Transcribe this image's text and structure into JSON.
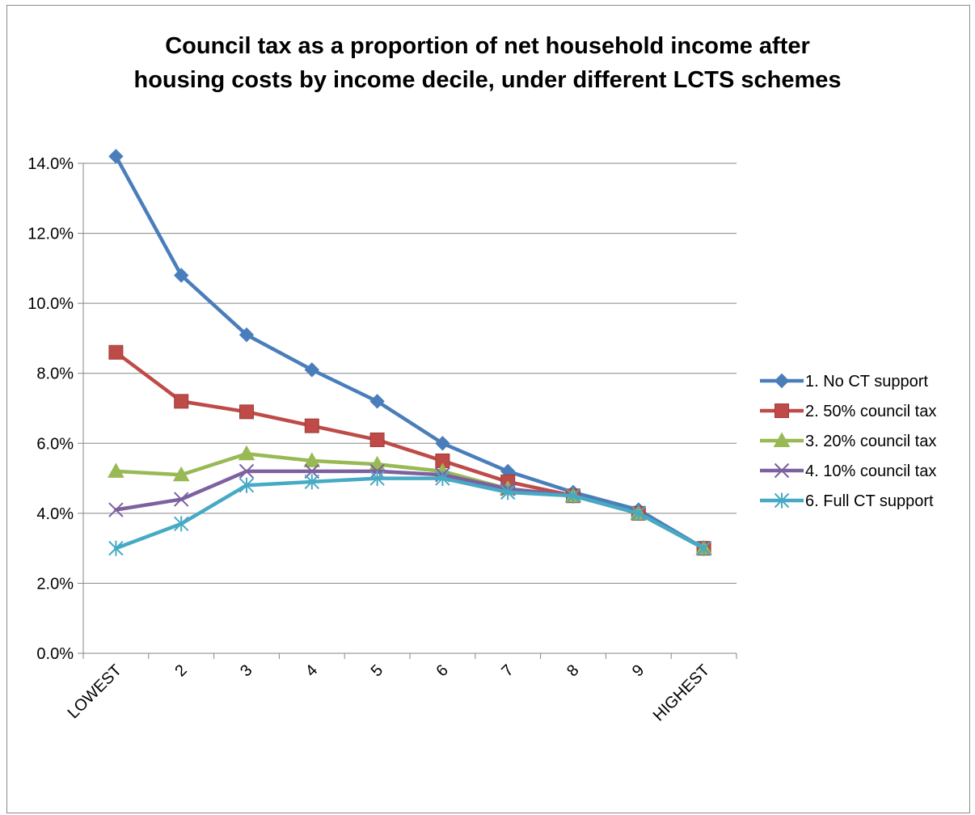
{
  "chart_data": {
    "type": "line",
    "title_lines": [
      "Council tax as a proportion of net household income after",
      "housing costs by income decile, under different LCTS schemes"
    ],
    "categories": [
      "LOWEST",
      "2",
      "3",
      "4",
      "5",
      "6",
      "7",
      "8",
      "9",
      "HIGHEST"
    ],
    "y_ticks": [
      "0.0%",
      "2.0%",
      "4.0%",
      "6.0%",
      "8.0%",
      "10.0%",
      "12.0%",
      "14.0%"
    ],
    "ylim": [
      0,
      14
    ],
    "y_unit": "%",
    "grid": "horizontal",
    "legend_position": "right",
    "series": [
      {
        "name": "1. No CT support",
        "color": "#4a7ebb",
        "marker": "diamond",
        "values": [
          14.2,
          10.8,
          9.1,
          8.1,
          7.2,
          6.0,
          5.2,
          4.6,
          4.1,
          3.0
        ]
      },
      {
        "name": "2. 50% council tax",
        "color": "#be4b48",
        "marker": "square",
        "values": [
          8.6,
          7.2,
          6.9,
          6.5,
          6.1,
          5.5,
          4.9,
          4.5,
          4.0,
          3.0
        ]
      },
      {
        "name": "3. 20% council tax",
        "color": "#98b954",
        "marker": "triangle",
        "values": [
          5.2,
          5.1,
          5.7,
          5.5,
          5.4,
          5.2,
          4.7,
          4.5,
          4.0,
          3.0
        ]
      },
      {
        "name": "4. 10% council tax",
        "color": "#7d60a0",
        "marker": "x",
        "values": [
          4.1,
          4.4,
          5.2,
          5.2,
          5.2,
          5.1,
          4.7,
          4.5,
          4.0,
          3.0
        ]
      },
      {
        "name": "6. Full CT support",
        "color": "#46aac5",
        "marker": "star",
        "values": [
          3.0,
          3.7,
          4.8,
          4.9,
          5.0,
          5.0,
          4.6,
          4.5,
          4.0,
          3.0
        ]
      }
    ]
  }
}
